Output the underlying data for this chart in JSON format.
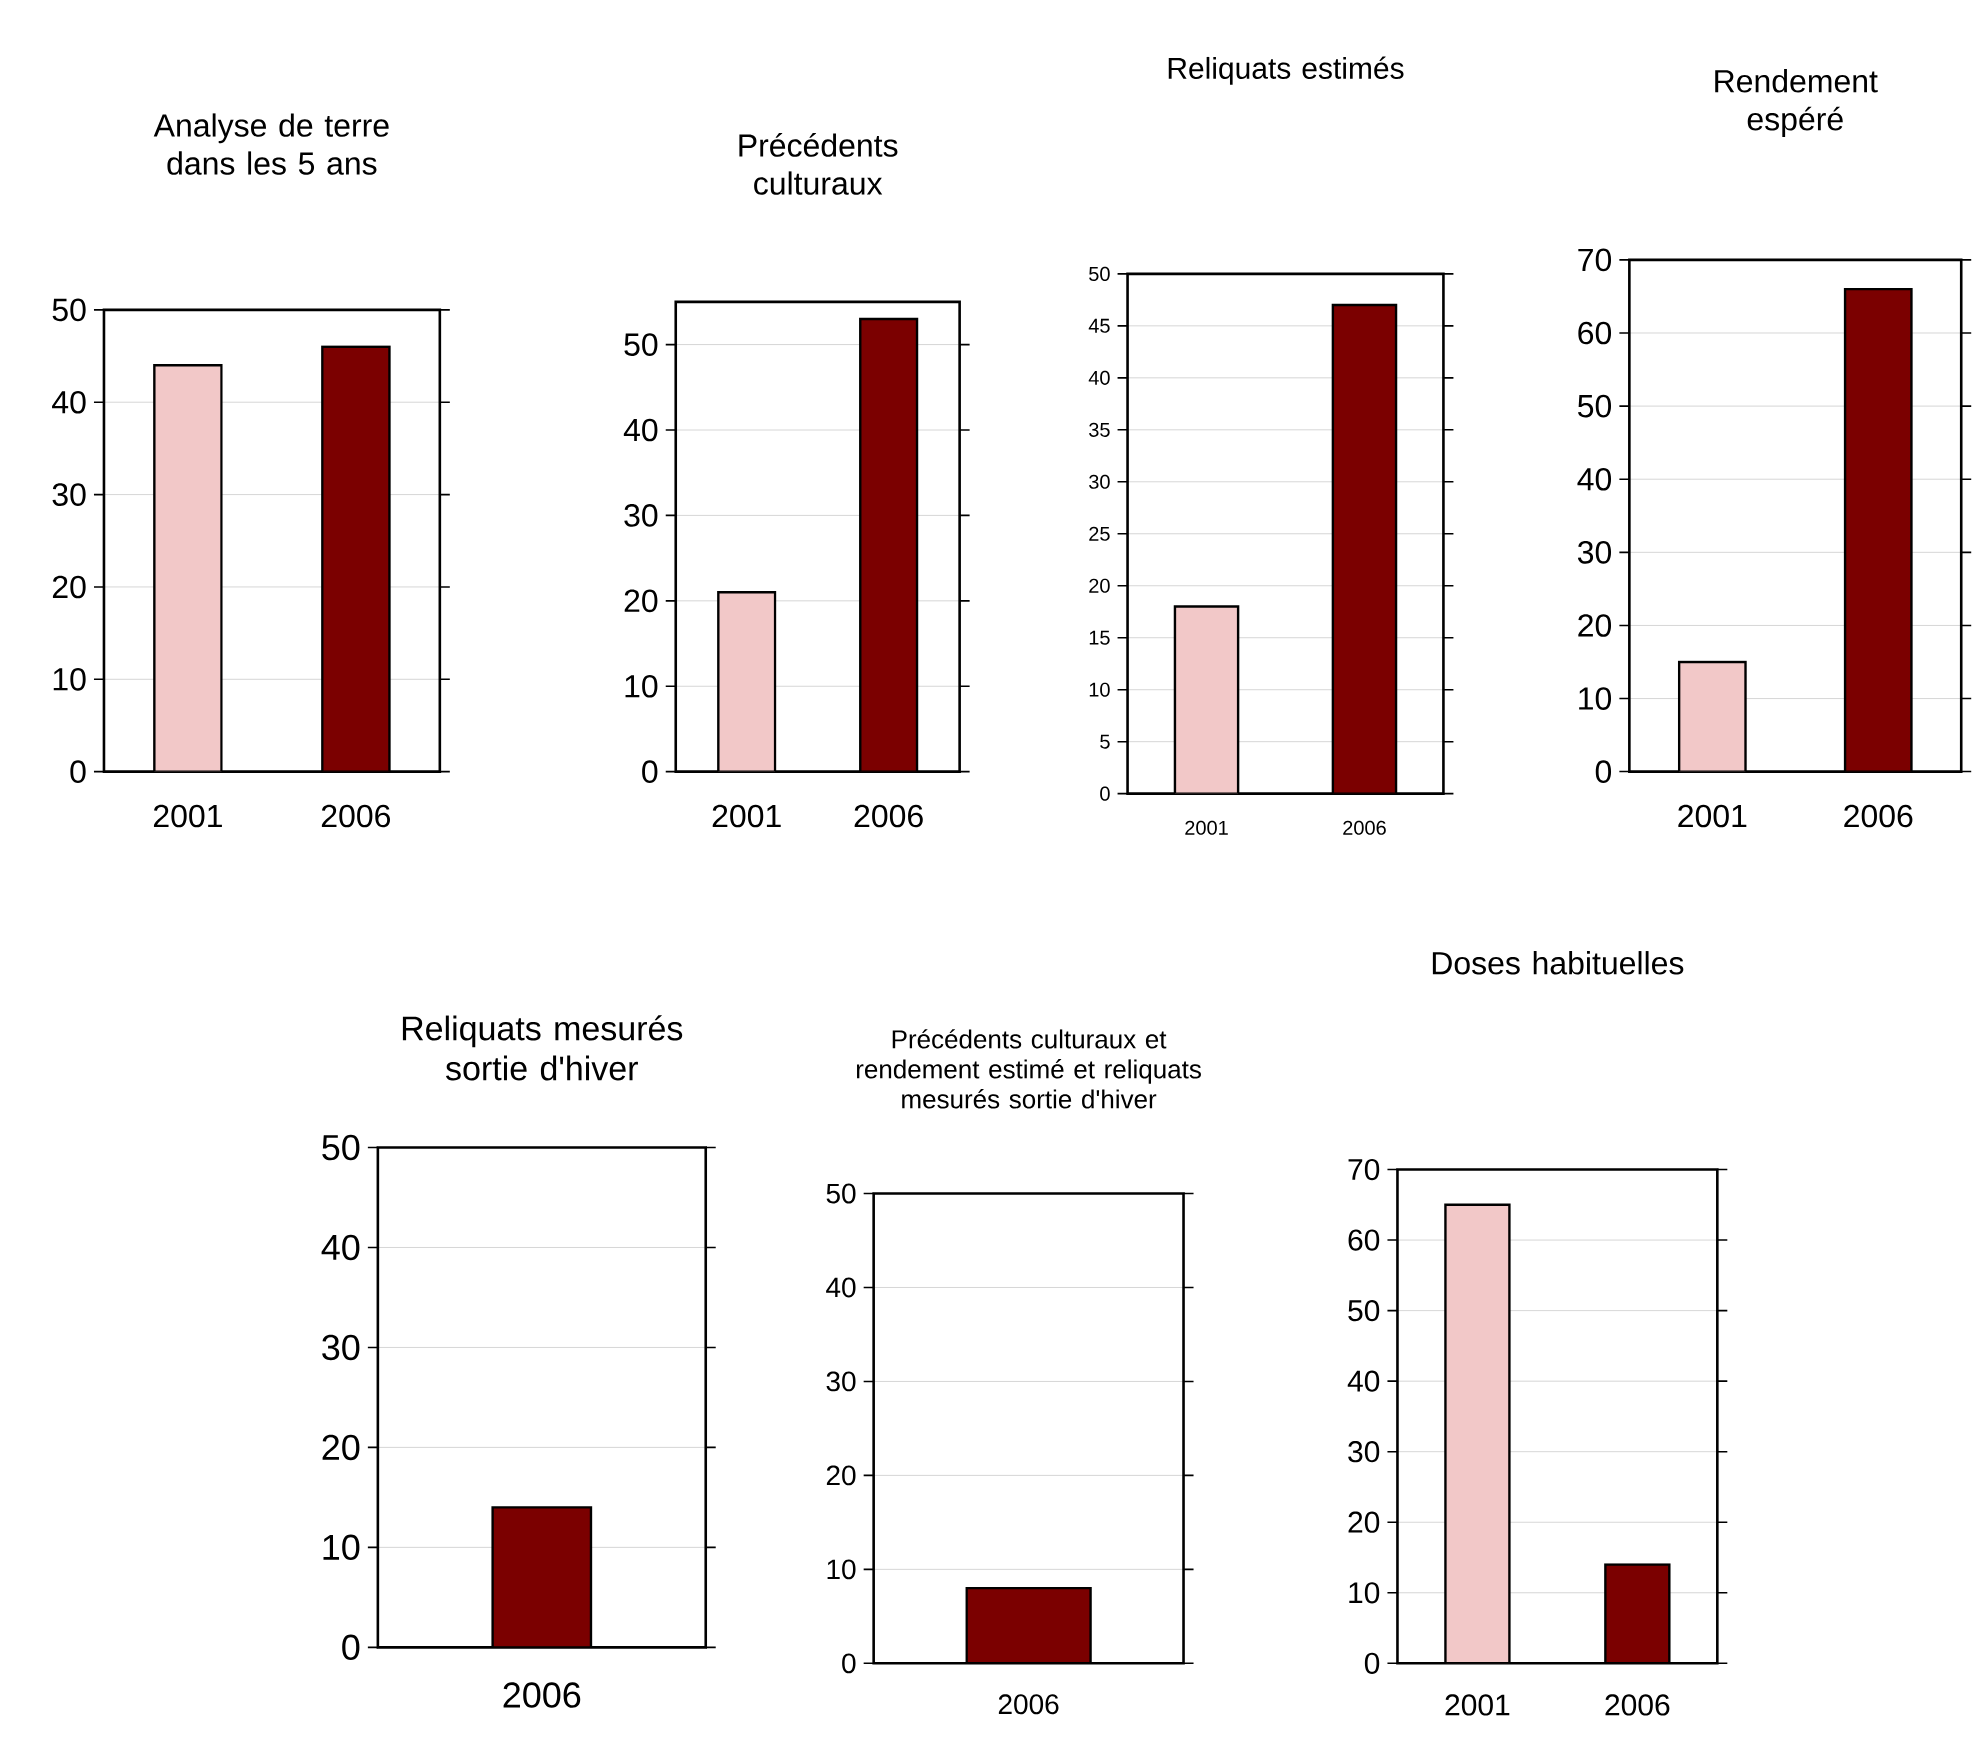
{
  "chart_data": [
    {
      "type": "bar",
      "title": "Analyse de terre dans les 5 ans",
      "categories": [
        "2001",
        "2006"
      ],
      "values": [
        44,
        46
      ],
      "colors": [
        "#f2c8c8",
        "#7b0000"
      ],
      "ylim": [
        0,
        50
      ],
      "yticks": [
        0,
        10,
        20,
        30,
        40,
        50
      ],
      "grid": "y"
    },
    {
      "type": "bar",
      "title": "Précédents culturaux",
      "categories": [
        "2001",
        "2006"
      ],
      "values": [
        21,
        53
      ],
      "colors": [
        "#f2c8c8",
        "#7b0000"
      ],
      "ylim": [
        0,
        55
      ],
      "yticks": [
        0,
        10,
        20,
        30,
        40,
        50
      ],
      "grid": "y"
    },
    {
      "type": "bar",
      "title": "Reliquats estimés",
      "categories": [
        "2001",
        "2006"
      ],
      "values": [
        18,
        47
      ],
      "colors": [
        "#f2c8c8",
        "#7b0000"
      ],
      "ylim": [
        0,
        50
      ],
      "yticks": [
        0,
        5,
        10,
        15,
        20,
        25,
        30,
        35,
        40,
        45,
        50
      ],
      "grid": "y"
    },
    {
      "type": "bar",
      "title": "Rendement espéré",
      "categories": [
        "2001",
        "2006"
      ],
      "values": [
        15,
        66
      ],
      "colors": [
        "#f2c8c8",
        "#7b0000"
      ],
      "ylim": [
        0,
        70
      ],
      "yticks": [
        0,
        10,
        20,
        30,
        40,
        50,
        60,
        70
      ],
      "grid": "y"
    },
    {
      "type": "bar",
      "title": "Reliquats mesurés sortie d'hiver",
      "categories": [
        "2006"
      ],
      "values": [
        14
      ],
      "colors": [
        "#7b0000"
      ],
      "ylim": [
        0,
        50
      ],
      "yticks": [
        0,
        10,
        20,
        30,
        40,
        50
      ],
      "grid": "y"
    },
    {
      "type": "bar",
      "title": "Précédents culturaux et rendement estimé et reliquats mesurés sortie d'hiver",
      "categories": [
        "2006"
      ],
      "values": [
        8
      ],
      "colors": [
        "#7b0000"
      ],
      "ylim": [
        0,
        50
      ],
      "yticks": [
        0,
        10,
        20,
        30,
        40,
        50
      ],
      "grid": "y"
    },
    {
      "type": "bar",
      "title": "Doses habituelles",
      "categories": [
        "2001",
        "2006"
      ],
      "values": [
        65,
        14
      ],
      "colors": [
        "#f2c8c8",
        "#7b0000"
      ],
      "ylim": [
        0,
        70
      ],
      "yticks": [
        0,
        10,
        20,
        30,
        40,
        50,
        60,
        70
      ],
      "grid": "y"
    }
  ]
}
